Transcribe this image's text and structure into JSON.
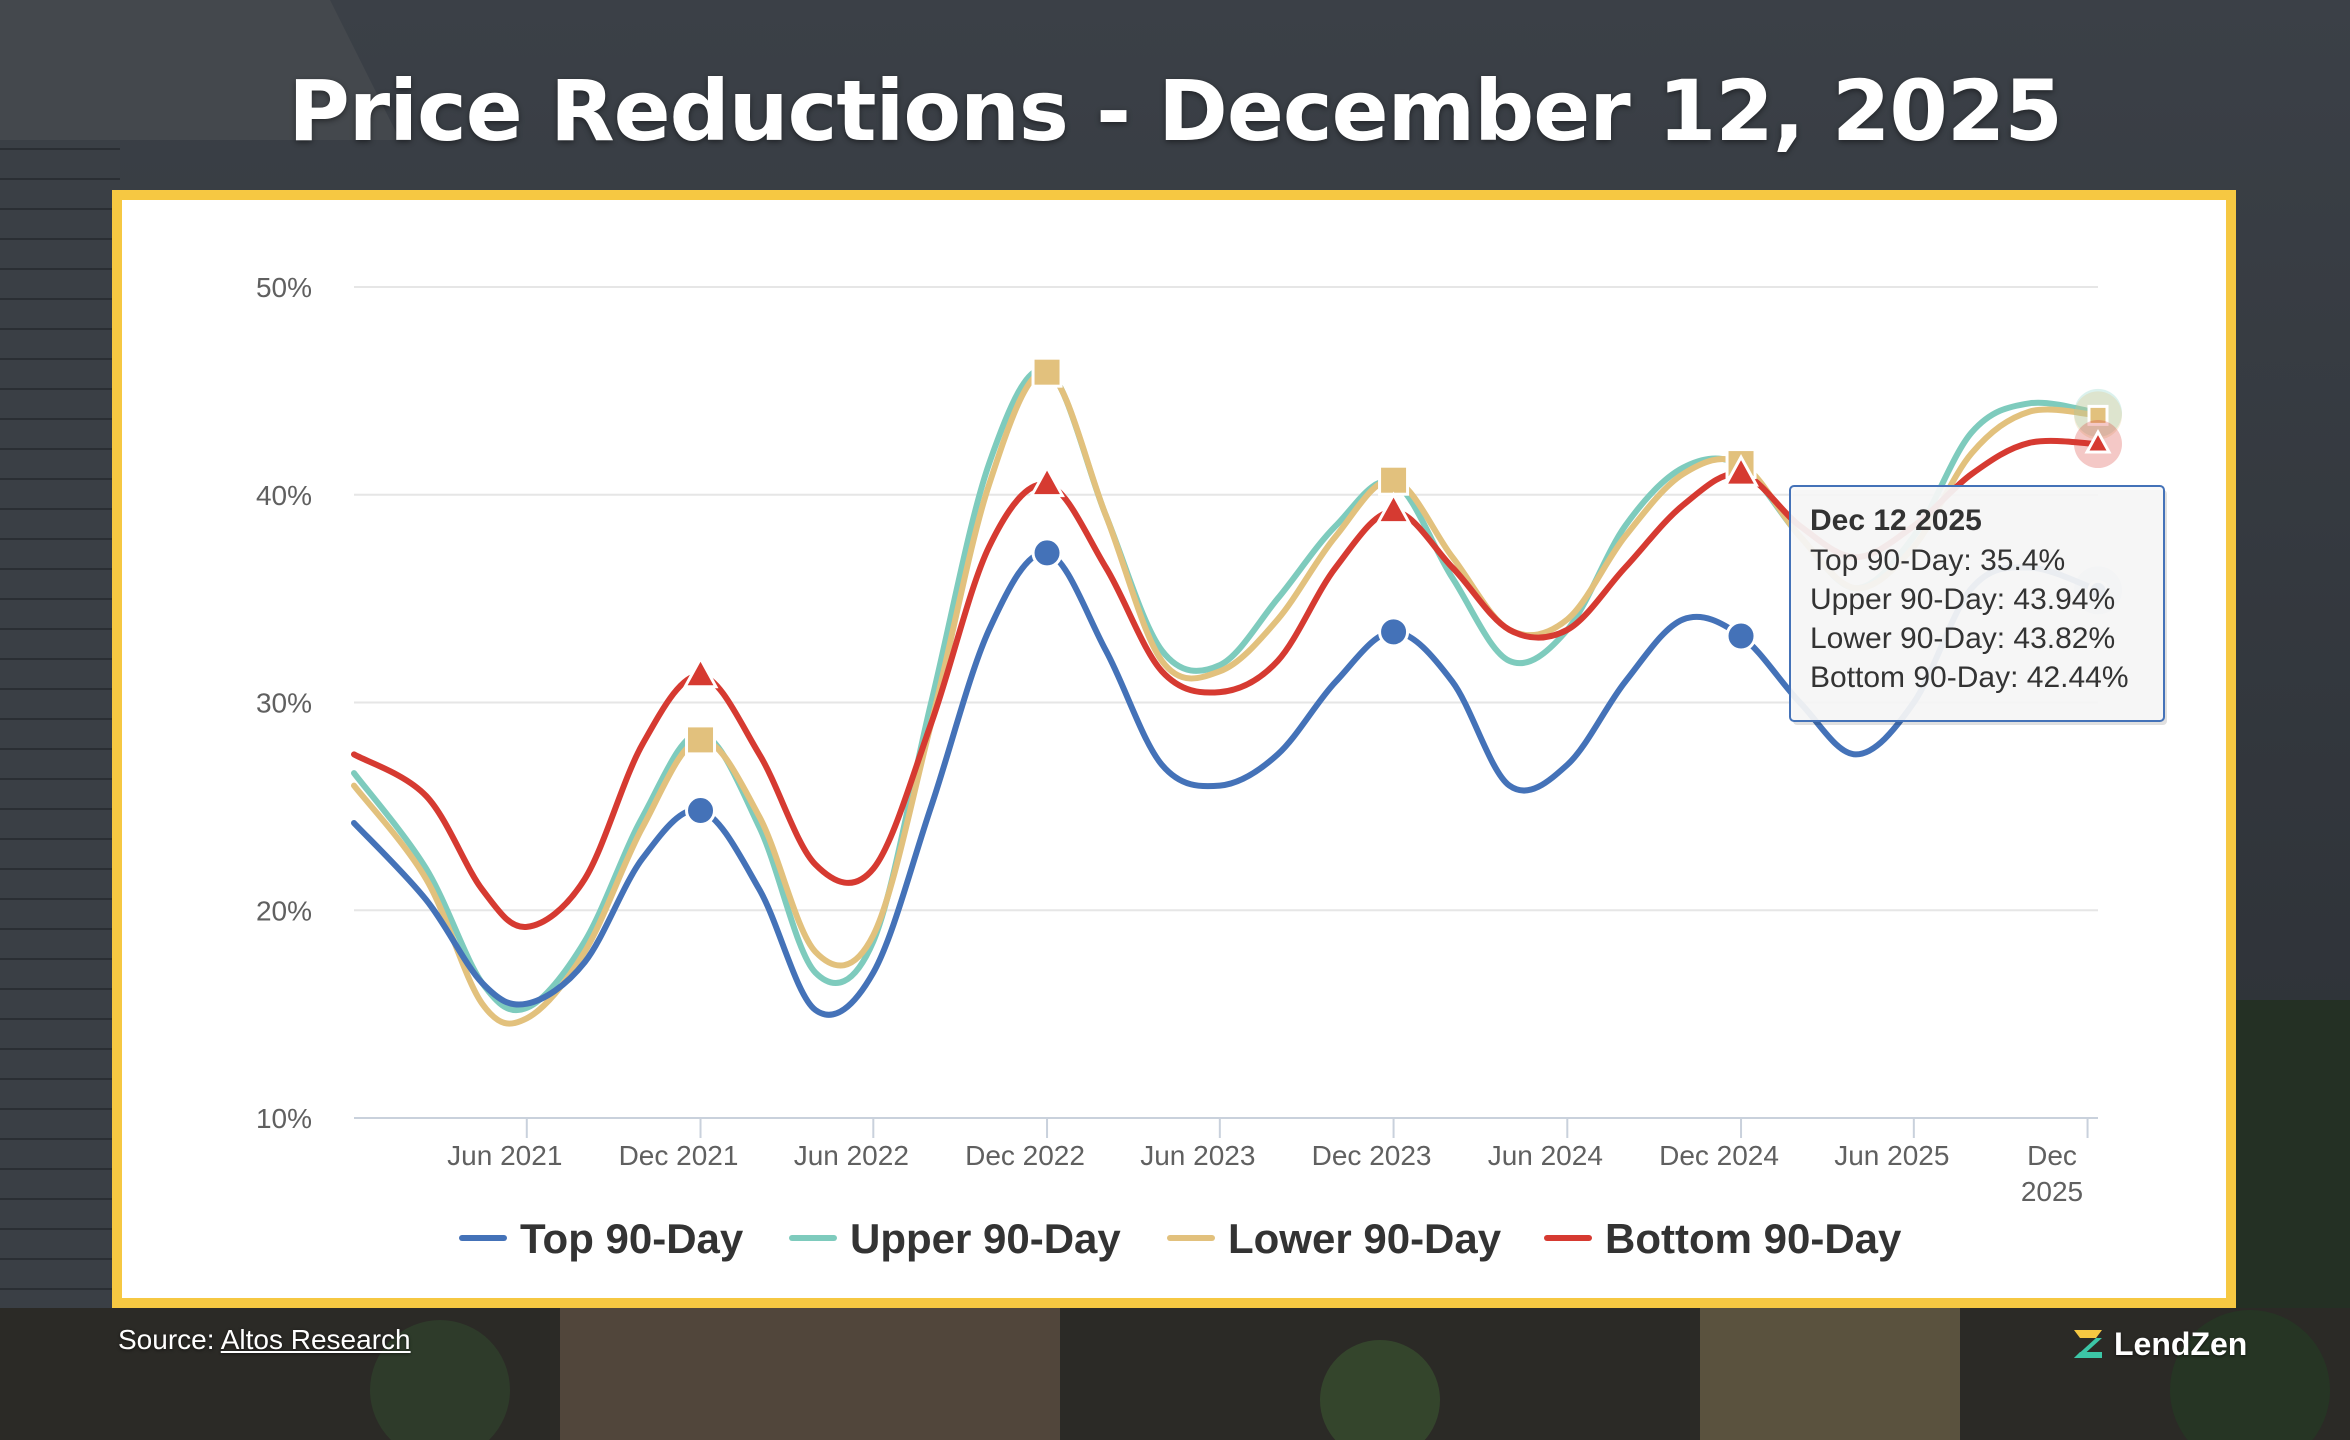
{
  "title": "Price Reductions - December 12, 2025",
  "source_label": "Source:",
  "source_link": "Altos Research",
  "brand": "LendZen",
  "colors": {
    "frame": "#f6c842",
    "top": "#4472b8",
    "upper": "#7ecbbd",
    "lower": "#e2c17d",
    "bottom": "#d63a31"
  },
  "icons": [
    "lendzen-logo-icon"
  ],
  "chart_data": {
    "type": "line",
    "ylim": [
      10,
      50
    ],
    "y_ticks": [
      "10%",
      "20%",
      "30%",
      "40%",
      "50%"
    ],
    "y_tick_values": [
      10,
      20,
      30,
      40,
      50
    ],
    "x_range": [
      "2020-12-01",
      "2025-12-12"
    ],
    "x_ticks": [
      {
        "label": "Jun 2021",
        "date": "2021-06-01"
      },
      {
        "label": "Dec 2021",
        "date": "2021-12-01"
      },
      {
        "label": "Jun 2022",
        "date": "2022-06-01"
      },
      {
        "label": "Dec 2022",
        "date": "2022-12-01"
      },
      {
        "label": "Jun 2023",
        "date": "2023-06-01"
      },
      {
        "label": "Dec 2023",
        "date": "2023-12-01"
      },
      {
        "label": "Jun 2024",
        "date": "2024-06-01"
      },
      {
        "label": "Dec 2024",
        "date": "2024-12-01"
      },
      {
        "label": "Jun 2025",
        "date": "2025-06-01"
      },
      {
        "label": "Dec 2025",
        "date": "2025-12-01"
      }
    ],
    "grid": true,
    "legend_position": "bottom",
    "series": [
      {
        "name": "Top 90-Day",
        "marker": "circle",
        "color": "#4472b8",
        "points": [
          [
            "2020-12-01",
            24.2
          ],
          [
            "2021-02-15",
            20.5
          ],
          [
            "2021-04-15",
            16.5
          ],
          [
            "2021-06-01",
            15.5
          ],
          [
            "2021-08-01",
            17.5
          ],
          [
            "2021-10-01",
            22.5
          ],
          [
            "2021-12-01",
            24.8
          ],
          [
            "2022-02-01",
            21.0
          ],
          [
            "2022-04-01",
            15.2
          ],
          [
            "2022-06-01",
            17.0
          ],
          [
            "2022-08-01",
            25.0
          ],
          [
            "2022-10-01",
            33.5
          ],
          [
            "2022-12-01",
            37.2
          ],
          [
            "2023-02-01",
            32.5
          ],
          [
            "2023-04-01",
            27.0
          ],
          [
            "2023-06-01",
            26.0
          ],
          [
            "2023-08-01",
            27.5
          ],
          [
            "2023-10-01",
            31.0
          ],
          [
            "2023-12-01",
            33.4
          ],
          [
            "2024-02-01",
            31.0
          ],
          [
            "2024-04-01",
            26.0
          ],
          [
            "2024-06-01",
            27.0
          ],
          [
            "2024-08-01",
            31.0
          ],
          [
            "2024-10-01",
            34.0
          ],
          [
            "2024-12-01",
            33.2
          ],
          [
            "2025-02-01",
            30.0
          ],
          [
            "2025-04-01",
            27.5
          ],
          [
            "2025-06-01",
            30.0
          ],
          [
            "2025-08-01",
            35.5
          ],
          [
            "2025-10-01",
            36.5
          ],
          [
            "2025-12-12",
            35.4
          ]
        ]
      },
      {
        "name": "Upper 90-Day",
        "marker": "circle",
        "color": "#7ecbbd",
        "points": [
          [
            "2020-12-01",
            26.6
          ],
          [
            "2021-02-15",
            22.0
          ],
          [
            "2021-04-15",
            16.5
          ],
          [
            "2021-06-01",
            15.3
          ],
          [
            "2021-08-01",
            18.5
          ],
          [
            "2021-10-01",
            24.5
          ],
          [
            "2021-12-01",
            28.5
          ],
          [
            "2022-02-01",
            24.0
          ],
          [
            "2022-04-01",
            17.0
          ],
          [
            "2022-06-01",
            18.5
          ],
          [
            "2022-08-01",
            30.0
          ],
          [
            "2022-10-01",
            41.5
          ],
          [
            "2022-12-01",
            46.0
          ],
          [
            "2023-02-01",
            39.0
          ],
          [
            "2023-04-01",
            32.5
          ],
          [
            "2023-06-01",
            31.8
          ],
          [
            "2023-08-01",
            35.0
          ],
          [
            "2023-10-01",
            38.5
          ],
          [
            "2023-12-01",
            40.6
          ],
          [
            "2024-02-01",
            36.0
          ],
          [
            "2024-04-01",
            32.0
          ],
          [
            "2024-06-01",
            33.5
          ],
          [
            "2024-08-01",
            38.5
          ],
          [
            "2024-10-01",
            41.3
          ],
          [
            "2024-12-01",
            41.4
          ],
          [
            "2025-02-01",
            38.0
          ],
          [
            "2025-04-01",
            35.5
          ],
          [
            "2025-06-01",
            38.0
          ],
          [
            "2025-08-01",
            43.0
          ],
          [
            "2025-10-01",
            44.4
          ],
          [
            "2025-12-12",
            43.94
          ]
        ]
      },
      {
        "name": "Lower 90-Day",
        "marker": "square",
        "color": "#e2c17d",
        "points": [
          [
            "2020-12-01",
            26.0
          ],
          [
            "2021-02-15",
            21.5
          ],
          [
            "2021-04-15",
            15.5
          ],
          [
            "2021-06-01",
            14.8
          ],
          [
            "2021-08-01",
            18.0
          ],
          [
            "2021-10-01",
            24.0
          ],
          [
            "2021-12-01",
            28.2
          ],
          [
            "2022-02-01",
            24.5
          ],
          [
            "2022-04-01",
            18.0
          ],
          [
            "2022-06-01",
            18.8
          ],
          [
            "2022-08-01",
            29.0
          ],
          [
            "2022-10-01",
            40.5
          ],
          [
            "2022-12-01",
            45.9
          ],
          [
            "2023-02-01",
            39.0
          ],
          [
            "2023-04-01",
            32.0
          ],
          [
            "2023-06-01",
            31.5
          ],
          [
            "2023-08-01",
            34.0
          ],
          [
            "2023-10-01",
            38.0
          ],
          [
            "2023-12-01",
            40.7
          ],
          [
            "2024-02-01",
            37.0
          ],
          [
            "2024-04-01",
            33.5
          ],
          [
            "2024-06-01",
            34.0
          ],
          [
            "2024-08-01",
            38.0
          ],
          [
            "2024-10-01",
            41.0
          ],
          [
            "2024-12-01",
            41.5
          ],
          [
            "2025-02-01",
            38.0
          ],
          [
            "2025-04-01",
            35.5
          ],
          [
            "2025-06-01",
            37.5
          ],
          [
            "2025-08-01",
            42.0
          ],
          [
            "2025-10-01",
            44.0
          ],
          [
            "2025-12-12",
            43.82
          ]
        ]
      },
      {
        "name": "Bottom 90-Day",
        "marker": "triangle",
        "color": "#d63a31",
        "points": [
          [
            "2020-12-01",
            27.5
          ],
          [
            "2021-02-15",
            25.5
          ],
          [
            "2021-04-15",
            21.0
          ],
          [
            "2021-06-01",
            19.2
          ],
          [
            "2021-08-01",
            21.5
          ],
          [
            "2021-10-01",
            28.0
          ],
          [
            "2021-12-01",
            31.3
          ],
          [
            "2022-02-01",
            27.5
          ],
          [
            "2022-04-01",
            22.2
          ],
          [
            "2022-06-01",
            22.0
          ],
          [
            "2022-08-01",
            29.0
          ],
          [
            "2022-10-01",
            37.5
          ],
          [
            "2022-12-01",
            40.5
          ],
          [
            "2023-02-01",
            36.5
          ],
          [
            "2023-04-01",
            31.5
          ],
          [
            "2023-06-01",
            30.5
          ],
          [
            "2023-08-01",
            32.0
          ],
          [
            "2023-10-01",
            36.5
          ],
          [
            "2023-12-01",
            39.2
          ],
          [
            "2024-02-01",
            36.5
          ],
          [
            "2024-04-01",
            33.5
          ],
          [
            "2024-06-01",
            33.5
          ],
          [
            "2024-08-01",
            36.5
          ],
          [
            "2024-10-01",
            39.5
          ],
          [
            "2024-12-01",
            41.0
          ],
          [
            "2025-02-01",
            38.5
          ],
          [
            "2025-04-01",
            37.0
          ],
          [
            "2025-06-01",
            38.5
          ],
          [
            "2025-08-01",
            41.0
          ],
          [
            "2025-10-01",
            42.5
          ],
          [
            "2025-12-12",
            42.44
          ]
        ]
      }
    ],
    "tooltip": {
      "title": "Dec 12 2025",
      "lines": [
        {
          "label": "Top 90-Day: ",
          "value": "35.4%"
        },
        {
          "label": "Upper 90-Day: ",
          "value": "43.94%"
        },
        {
          "label": "Lower 90-Day: ",
          "value": "43.82%"
        },
        {
          "label": "Bottom 90-Day: ",
          "value": "42.44%"
        }
      ]
    }
  }
}
